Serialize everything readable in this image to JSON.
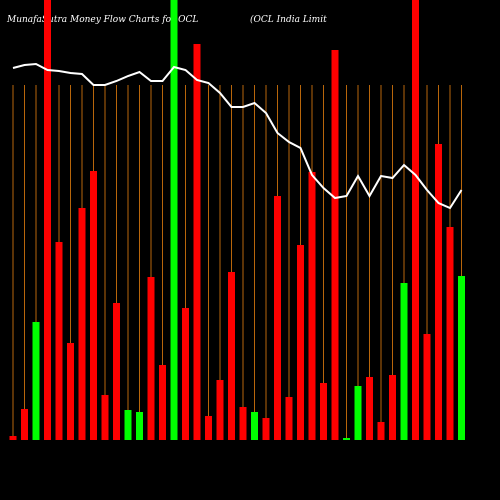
{
  "chart_data": {
    "type": "bar",
    "title": "MunafaSutra  Money Flow  Charts for OCL",
    "subtitle": "(OCL  India  Limit",
    "categories": [
      null,
      null,
      null,
      null,
      null,
      null,
      null,
      null,
      null,
      null,
      null,
      null,
      null,
      null,
      null,
      null,
      null,
      null,
      null,
      null,
      null,
      null,
      null,
      null,
      null,
      null,
      null,
      null,
      null,
      null,
      null,
      null,
      null,
      null,
      null,
      null,
      null,
      null,
      null,
      null
    ],
    "values": [
      4,
      31,
      118,
      440,
      198,
      97,
      232,
      269,
      45,
      137,
      30,
      28,
      163,
      75,
      440,
      132,
      396,
      24,
      60,
      168,
      33,
      28,
      22,
      244,
      43,
      195,
      268,
      57,
      390,
      2,
      54,
      63,
      18,
      65,
      157,
      440,
      106,
      296,
      213,
      164
    ],
    "colors": [
      "#ff0000",
      "#ff0000",
      "#00ff00",
      "#ff0000",
      "#ff0000",
      "#ff0000",
      "#ff0000",
      "#ff0000",
      "#ff0000",
      "#ff0000",
      "#00ff00",
      "#00ff00",
      "#ff0000",
      "#ff0000",
      "#00ff00",
      "#ff0000",
      "#ff0000",
      "#ff0000",
      "#ff0000",
      "#ff0000",
      "#ff0000",
      "#00ff00",
      "#ff0000",
      "#ff0000",
      "#ff0000",
      "#ff0000",
      "#ff0000",
      "#ff0000",
      "#ff0000",
      "#00ff00",
      "#00ff00",
      "#ff0000",
      "#ff0000",
      "#ff0000",
      "#00ff00",
      "#ff0000",
      "#ff0000",
      "#ff0000",
      "#ff0000",
      "#00ff00"
    ],
    "line": {
      "color": "#ffffff",
      "values": [
        372,
        375,
        376,
        370,
        369,
        367,
        366,
        355,
        355,
        359,
        364,
        368,
        359,
        359,
        373,
        370,
        360,
        357,
        347,
        333,
        333,
        337,
        327,
        307,
        298,
        292,
        265,
        252,
        242,
        244,
        264,
        244,
        264,
        262,
        275,
        265,
        250,
        237,
        232,
        250
      ]
    },
    "ylim": [
      0,
      440
    ],
    "grid_color": "#b8660b"
  }
}
